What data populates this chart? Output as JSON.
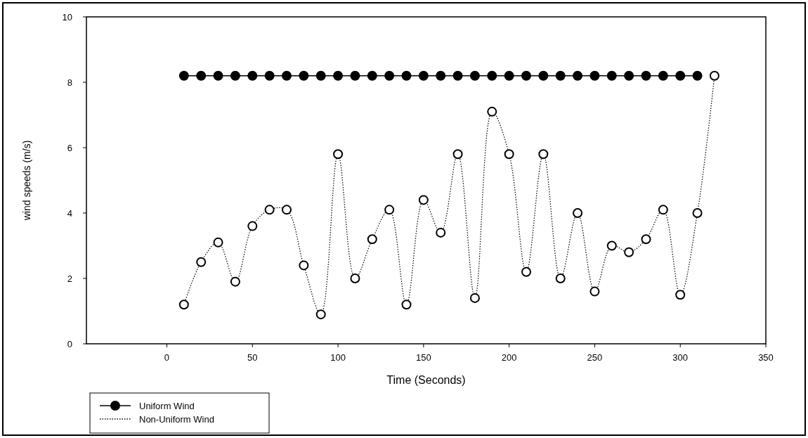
{
  "chart_data": {
    "type": "line",
    "xlabel": "Time (Seconds)",
    "ylabel": "wind speeds (m/s)",
    "xlim": [
      -47,
      350
    ],
    "xticks": [
      0,
      50,
      100,
      150,
      200,
      250,
      300,
      350
    ],
    "ylim": [
      0,
      10
    ],
    "yticks": [
      0,
      2,
      4,
      6,
      8,
      10
    ],
    "grid": false,
    "legend": "bottom left",
    "series": [
      {
        "name": "Uniform Wind",
        "color": "#000000",
        "marker": "circle",
        "line_style": "solid",
        "x": [
          10,
          20,
          30,
          40,
          50,
          60,
          70,
          80,
          90,
          100,
          110,
          120,
          130,
          140,
          150,
          160,
          170,
          180,
          190,
          200,
          210,
          220,
          230,
          240,
          250,
          260,
          270,
          280,
          290,
          300,
          310
        ],
        "values": [
          8.2,
          8.2,
          8.2,
          8.2,
          8.2,
          8.2,
          8.2,
          8.2,
          8.2,
          8.2,
          8.2,
          8.2,
          8.2,
          8.2,
          8.2,
          8.2,
          8.2,
          8.2,
          8.2,
          8.2,
          8.2,
          8.2,
          8.2,
          8.2,
          8.2,
          8.2,
          8.2,
          8.2,
          8.2,
          8.2,
          8.2
        ]
      },
      {
        "name": "Non-Uniform Wind",
        "color": "#000000",
        "marker": "circle",
        "line_style": "dotted",
        "x": [
          10,
          20,
          30,
          40,
          50,
          60,
          70,
          80,
          90,
          100,
          110,
          120,
          130,
          140,
          150,
          160,
          170,
          180,
          190,
          200,
          210,
          220,
          230,
          240,
          250,
          260,
          270,
          280,
          290,
          300,
          310,
          320
        ],
        "values": [
          1.2,
          2.5,
          3.1,
          1.9,
          3.6,
          4.1,
          4.1,
          2.4,
          0.9,
          5.8,
          2.0,
          3.2,
          4.1,
          1.2,
          4.4,
          3.4,
          5.8,
          1.4,
          7.1,
          5.8,
          2.2,
          5.8,
          2.0,
          4.0,
          1.6,
          3.0,
          2.8,
          3.2,
          4.1,
          1.5,
          4.0,
          8.2
        ]
      }
    ]
  }
}
